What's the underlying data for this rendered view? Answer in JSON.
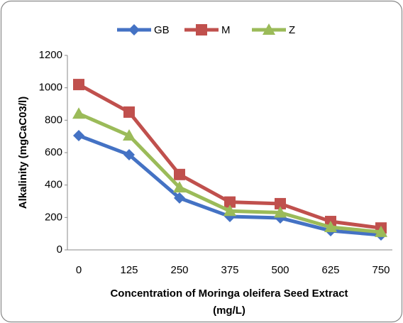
{
  "chart_data": {
    "type": "line",
    "ylabel": "Alkalinity (mgCaC03/l)",
    "xlabel": [
      "Concentration of Moringa oleifera Seed Extract",
      "(mg/L)"
    ],
    "categories": [
      "0",
      "125",
      "250",
      "375",
      "500",
      "625",
      "750"
    ],
    "series": [
      {
        "name": "GB",
        "color": "#4472c4",
        "marker": "diamond",
        "values": [
          705,
          587,
          320,
          206,
          197,
          118,
          92
        ]
      },
      {
        "name": "M",
        "color": "#c0504d",
        "marker": "square",
        "values": [
          1020,
          850,
          465,
          295,
          285,
          175,
          135
        ]
      },
      {
        "name": "Z",
        "color": "#9bbb59",
        "marker": "triangle",
        "values": [
          840,
          705,
          385,
          240,
          230,
          140,
          110
        ]
      }
    ],
    "ylim": [
      0,
      1200
    ],
    "yticks": [
      0,
      200,
      400,
      600,
      800,
      1000,
      1200
    ],
    "grid": false,
    "legend": "top"
  }
}
